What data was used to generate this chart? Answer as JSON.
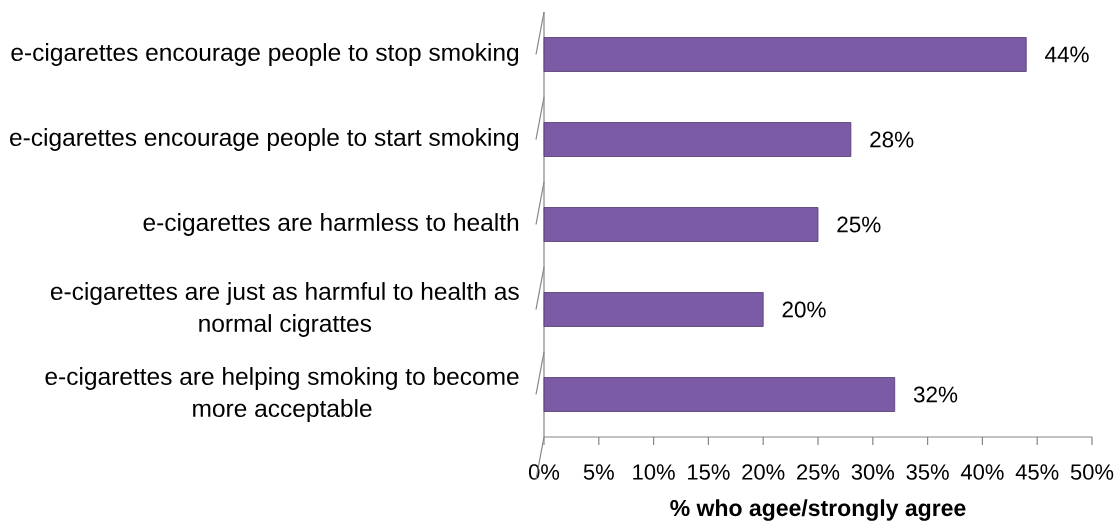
{
  "chart_data": {
    "type": "bar",
    "orientation": "horizontal",
    "categories": [
      "e-cigarettes encourage people to stop smoking",
      "e-cigarettes encourage people to start smoking",
      "e-cigarettes are harmless to health",
      "e-cigarettes are just as harmful to health as normal cigrattes",
      "e-cigarettes are helping smoking to become more acceptable"
    ],
    "values": [
      44,
      28,
      25,
      20,
      32
    ],
    "color": "#7b5ba6",
    "value_labels": [
      "44%",
      "28%",
      "25%",
      "20%",
      "32%"
    ],
    "xlabel": "% who agee/strongly agree",
    "xlim": [
      0,
      50
    ],
    "xticks": [
      {
        "value": 0,
        "label": "0%"
      },
      {
        "value": 5,
        "label": "5%"
      },
      {
        "value": 10,
        "label": "10%"
      },
      {
        "value": 15,
        "label": "15%"
      },
      {
        "value": 20,
        "label": "20%"
      },
      {
        "value": 25,
        "label": "25%"
      },
      {
        "value": 30,
        "label": "30%"
      },
      {
        "value": 35,
        "label": "35%"
      },
      {
        "value": 40,
        "label": "40%"
      },
      {
        "value": 45,
        "label": "45%"
      },
      {
        "value": 50,
        "label": "50%"
      }
    ]
  }
}
